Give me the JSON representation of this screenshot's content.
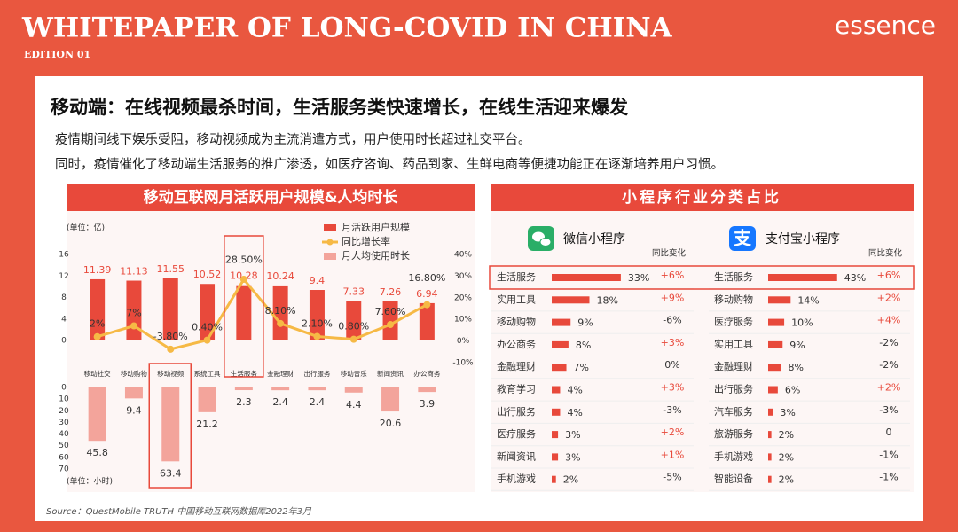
{
  "header": {
    "title": "WHITEPAPER OF LONG-COVID IN CHINA",
    "edition": "EDITION 01",
    "logo": "essence"
  },
  "headline": "移动端：在线视频最杀时间，生活服务类快速增长，在线生活迎来爆发",
  "paragraphs": [
    "疫情期间线下娱乐受阻，移动视频成为主流消遣方式，用户使用时长超过社交平台。",
    "同时，疫情催化了移动端生活服务的推广渗透，如医疗咨询、药品到家、生鲜电商等便捷功能正在逐渐培养用户习惯。"
  ],
  "mini_program_title": "小程序行业分类占比",
  "source": "Source：QuestMobile TRUTH 中国移动互联网数据库2022年3月",
  "chart_data": [
    {
      "type": "combo",
      "title": "移动互联网月活跃用户规模&人均时长",
      "unit_label": "(单位：亿)",
      "unit_label2": "(单位：小时)",
      "categories": [
        "移动社交",
        "移动购物",
        "移动视频",
        "系统工具",
        "生活服务",
        "金融理财",
        "出行服务",
        "移动音乐",
        "新闻资讯",
        "办公商务"
      ],
      "series": [
        {
          "name": "月活跃用户规模",
          "color": "#e8493b",
          "values": [
            11.39,
            11.13,
            11.55,
            10.52,
            10.28,
            10.24,
            9.4,
            7.33,
            7.26,
            6.94
          ]
        },
        {
          "name": "同比增长率",
          "color": "#f6b945",
          "axis": "y2",
          "values": [
            2,
            7,
            -3.8,
            0.4,
            28.5,
            8.1,
            2.1,
            0.8,
            7.6,
            16.8
          ],
          "value_labels": [
            "2%",
            "7%",
            "-3.80%",
            "0.40%",
            "28.50%",
            "8.10%",
            "2.10%",
            "0.80%",
            "7.60%",
            "16.80%"
          ]
        },
        {
          "name": "月人均使用时长",
          "color": "#f3a49b",
          "axis": "y3",
          "values": [
            45.8,
            9.4,
            63.4,
            21.2,
            2.3,
            2.4,
            2.4,
            4.4,
            20.6,
            3.9
          ]
        }
      ],
      "ylim": [
        0,
        16
      ],
      "yticks": [
        0,
        4,
        8,
        12,
        16
      ],
      "y2lim": [
        -10,
        40
      ],
      "y2ticks": [
        {
          "value": -10,
          "label": "-10%"
        },
        {
          "value": 0,
          "label": "0%"
        },
        {
          "value": 10,
          "label": "10%"
        },
        {
          "value": 20,
          "label": "20%"
        },
        {
          "value": 30,
          "label": "30%"
        },
        {
          "value": 40,
          "label": "40%"
        }
      ],
      "y3lim": [
        0,
        70
      ],
      "y3ticks": [
        0,
        10,
        20,
        30,
        40,
        50,
        60,
        70
      ]
    },
    {
      "type": "hbar",
      "title": "微信小程序",
      "change_header": "同比变化",
      "color": "#e8493b",
      "xlim": [
        0,
        36
      ],
      "categories": [
        "生活服务",
        "实用工具",
        "移动购物",
        "办公商务",
        "金融理财",
        "教育学习",
        "出行服务",
        "医疗服务",
        "新闻资讯",
        "手机游戏"
      ],
      "values": [
        33,
        18,
        9,
        8,
        7,
        4,
        4,
        3,
        3,
        2
      ],
      "value_labels": [
        "33%",
        "18%",
        "9%",
        "8%",
        "7%",
        "4%",
        "4%",
        "3%",
        "3%",
        "2%"
      ],
      "changes": [
        6,
        9,
        -6,
        3,
        0,
        3,
        -3,
        2,
        1,
        -5
      ],
      "change_labels": [
        "+6%",
        "+9%",
        "-6%",
        "+3%",
        "0%",
        "+3%",
        "-3%",
        "+2%",
        "+1%",
        "-5%"
      ]
    },
    {
      "type": "hbar",
      "title": "支付宝小程序",
      "change_header": "同比变化",
      "color": "#e8493b",
      "xlim": [
        0,
        47
      ],
      "categories": [
        "生活服务",
        "移动购物",
        "医疗服务",
        "实用工具",
        "金融理财",
        "出行服务",
        "汽车服务",
        "旅游服务",
        "手机游戏",
        "智能设备"
      ],
      "values": [
        43,
        14,
        10,
        9,
        8,
        6,
        3,
        2,
        2,
        2
      ],
      "value_labels": [
        "43%",
        "14%",
        "10%",
        "9%",
        "8%",
        "6%",
        "3%",
        "2%",
        "2%",
        "2%"
      ],
      "changes": [
        6,
        2,
        4,
        -2,
        -2,
        2,
        -3,
        0,
        -1,
        -1
      ],
      "change_labels": [
        "+6%",
        "+2%",
        "+4%",
        "-2%",
        "-2%",
        "+2%",
        "-3%",
        "0",
        "-1%",
        "-1%"
      ]
    }
  ]
}
